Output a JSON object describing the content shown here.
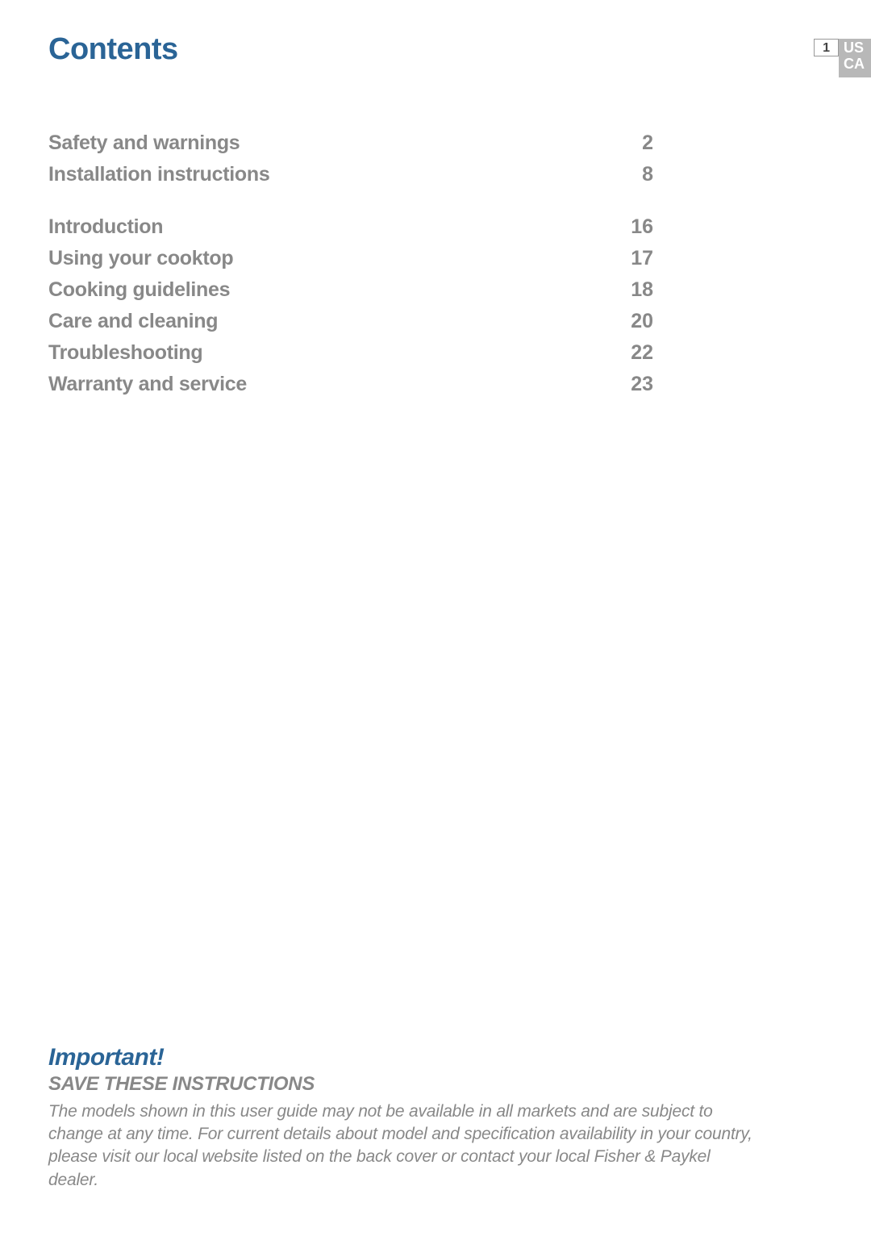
{
  "header": {
    "title": "Contents",
    "page_number": "1",
    "region_line1": "US",
    "region_line2": "CA"
  },
  "toc": {
    "group1": [
      {
        "label": "Safety and warnings",
        "page": "2"
      },
      {
        "label": "Installation instructions",
        "page": "8"
      }
    ],
    "group2": [
      {
        "label": "Introduction",
        "page": "16"
      },
      {
        "label": "Using your cooktop",
        "page": "17"
      },
      {
        "label": "Cooking guidelines",
        "page": "18"
      },
      {
        "label": "Care and cleaning",
        "page": "20"
      },
      {
        "label": "Troubleshooting",
        "page": "22"
      },
      {
        "label": "Warranty and service",
        "page": "23"
      }
    ]
  },
  "footer": {
    "important": "Important!",
    "save_heading": "SAVE THESE INSTRUCTIONS",
    "disclaimer": "The models shown in this user guide may not be available in all markets and are subject to change at any time. For current details about model and specification availability in your country, please visit our local website listed on the back cover or contact your local Fisher & Paykel dealer."
  },
  "colors": {
    "heading_blue": "#2a6496",
    "body_gray": "#888888",
    "badge_bg": "#b8b8b8",
    "page_bg": "#ffffff"
  },
  "typography": {
    "title_size_pt": 28,
    "toc_size_pt": 19,
    "important_size_pt": 23,
    "save_size_pt": 18,
    "disclaimer_size_pt": 16
  }
}
